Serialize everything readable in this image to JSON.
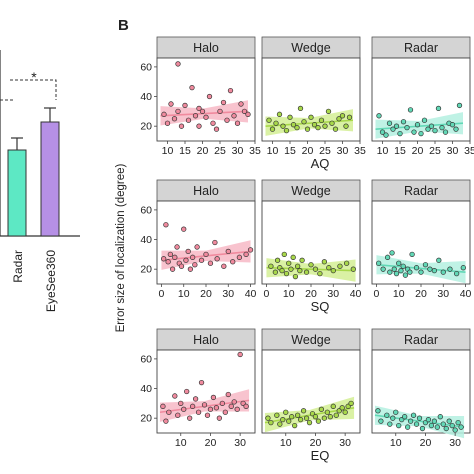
{
  "panel_letter": "B",
  "y_axis_label": "Error size of localization (degree)",
  "panel_a": {
    "bar_labels": [
      "Radar",
      "EyeSee360"
    ],
    "significance": "*",
    "colors": {
      "Radar": "#5de8c4",
      "EyeSee360": "#b690e6"
    }
  },
  "facet_titles": [
    "Halo",
    "Wedge",
    "Radar"
  ],
  "row_x_labels": [
    "AQ",
    "SQ",
    "EQ"
  ],
  "colors": {
    "Halo": "#f08a9e",
    "Wedge": "#a8d84a",
    "Radar": "#62d8b6",
    "Halo_band": "#f7b9c6",
    "Wedge_band": "#d4ef94",
    "Radar_band": "#b4f0e0",
    "strip": "#d4d4d4"
  },
  "chart_data": [
    {
      "type": "bar",
      "categories": [
        "Radar",
        "EyeSee360"
      ],
      "values": [
        28,
        34
      ],
      "errors": [
        3,
        3
      ],
      "annotation": "*"
    },
    {
      "type": "scatter",
      "row_label": "AQ",
      "x_ticks": [
        10,
        15,
        20,
        25,
        30,
        35
      ],
      "y_ticks": [
        20,
        40,
        60
      ],
      "xlim": [
        7,
        35
      ],
      "ylim": [
        10,
        66
      ],
      "facets": [
        {
          "title": "Halo",
          "fit": [
            [
              8,
              27
            ],
            [
              33,
              30
            ]
          ],
          "points": [
            [
              9,
              28
            ],
            [
              10,
              22
            ],
            [
              11,
              35
            ],
            [
              12,
              25
            ],
            [
              13,
              62
            ],
            [
              13,
              30
            ],
            [
              14,
              20
            ],
            [
              15,
              34
            ],
            [
              16,
              24
            ],
            [
              17,
              46
            ],
            [
              18,
              27
            ],
            [
              19,
              32
            ],
            [
              19,
              20
            ],
            [
              20,
              30
            ],
            [
              21,
              26
            ],
            [
              22,
              40
            ],
            [
              23,
              22
            ],
            [
              24,
              18
            ],
            [
              25,
              30
            ],
            [
              26,
              36
            ],
            [
              27,
              24
            ],
            [
              28,
              44
            ],
            [
              29,
              27
            ],
            [
              30,
              22
            ],
            [
              31,
              35
            ],
            [
              32,
              30
            ],
            [
              33,
              28
            ]
          ]
        },
        {
          "title": "Wedge",
          "fit": [
            [
              8,
              20
            ],
            [
              33,
              24
            ]
          ],
          "points": [
            [
              9,
              24
            ],
            [
              10,
              18
            ],
            [
              11,
              22
            ],
            [
              12,
              28
            ],
            [
              13,
              20
            ],
            [
              14,
              17
            ],
            [
              15,
              26
            ],
            [
              16,
              21
            ],
            [
              17,
              19
            ],
            [
              18,
              32
            ],
            [
              19,
              23
            ],
            [
              20,
              18
            ],
            [
              21,
              26
            ],
            [
              22,
              21
            ],
            [
              23,
              19
            ],
            [
              24,
              24
            ],
            [
              25,
              20
            ],
            [
              26,
              30
            ],
            [
              27,
              22
            ],
            [
              28,
              18
            ],
            [
              29,
              25
            ],
            [
              30,
              27
            ],
            [
              31,
              20
            ],
            [
              32,
              26
            ]
          ]
        },
        {
          "title": "Radar",
          "fit": [
            [
              8,
              18
            ],
            [
              33,
              22
            ]
          ],
          "points": [
            [
              9,
              27
            ],
            [
              10,
              16
            ],
            [
              11,
              14
            ],
            [
              12,
              22
            ],
            [
              13,
              18
            ],
            [
              14,
              20
            ],
            [
              15,
              15
            ],
            [
              16,
              23
            ],
            [
              17,
              19
            ],
            [
              18,
              31
            ],
            [
              19,
              16
            ],
            [
              20,
              21
            ],
            [
              21,
              15
            ],
            [
              22,
              24
            ],
            [
              23,
              18
            ],
            [
              24,
              20
            ],
            [
              25,
              17
            ],
            [
              26,
              32
            ],
            [
              27,
              19
            ],
            [
              28,
              16
            ],
            [
              29,
              22
            ],
            [
              30,
              21
            ],
            [
              31,
              18
            ],
            [
              32,
              34
            ]
          ]
        }
      ]
    },
    {
      "type": "scatter",
      "row_label": "SQ",
      "x_ticks": [
        0,
        10,
        20,
        30,
        40
      ],
      "y_ticks": [
        20,
        40,
        60
      ],
      "xlim": [
        -2,
        42
      ],
      "ylim": [
        10,
        66
      ],
      "facets": [
        {
          "title": "Halo",
          "fit": [
            [
              0,
              26
            ],
            [
              40,
              32
            ]
          ],
          "points": [
            [
              1,
              27
            ],
            [
              2,
              50
            ],
            [
              3,
              25
            ],
            [
              4,
              30
            ],
            [
              5,
              20
            ],
            [
              6,
              28
            ],
            [
              7,
              35
            ],
            [
              8,
              24
            ],
            [
              9,
              22
            ],
            [
              10,
              47
            ],
            [
              11,
              26
            ],
            [
              12,
              32
            ],
            [
              13,
              20
            ],
            [
              14,
              28
            ],
            [
              15,
              23
            ],
            [
              16,
              35
            ],
            [
              18,
              26
            ],
            [
              20,
              30
            ],
            [
              22,
              24
            ],
            [
              24,
              38
            ],
            [
              25,
              27
            ],
            [
              28,
              22
            ],
            [
              30,
              32
            ],
            [
              32,
              25
            ],
            [
              35,
              28
            ],
            [
              38,
              30
            ],
            [
              40,
              33
            ]
          ]
        },
        {
          "title": "Wedge",
          "fit": [
            [
              0,
              21
            ],
            [
              40,
              19
            ]
          ],
          "points": [
            [
              2,
              22
            ],
            [
              4,
              18
            ],
            [
              5,
              26
            ],
            [
              6,
              21
            ],
            [
              7,
              19
            ],
            [
              8,
              30
            ],
            [
              9,
              17
            ],
            [
              10,
              24
            ],
            [
              11,
              20
            ],
            [
              12,
              28
            ],
            [
              13,
              15
            ],
            [
              14,
              22
            ],
            [
              15,
              19
            ],
            [
              16,
              26
            ],
            [
              18,
              18
            ],
            [
              20,
              23
            ],
            [
              22,
              20
            ],
            [
              24,
              17
            ],
            [
              26,
              25
            ],
            [
              28,
              21
            ],
            [
              30,
              19
            ],
            [
              33,
              22
            ],
            [
              36,
              24
            ],
            [
              39,
              20
            ]
          ]
        },
        {
          "title": "Radar",
          "fit": [
            [
              0,
              23
            ],
            [
              40,
              18
            ]
          ],
          "points": [
            [
              1,
              24
            ],
            [
              3,
              20
            ],
            [
              5,
              28
            ],
            [
              6,
              18
            ],
            [
              7,
              31
            ],
            [
              8,
              20
            ],
            [
              9,
              17
            ],
            [
              10,
              24
            ],
            [
              11,
              19
            ],
            [
              12,
              22
            ],
            [
              13,
              16
            ],
            [
              14,
              20
            ],
            [
              15,
              18
            ],
            [
              16,
              30
            ],
            [
              18,
              21
            ],
            [
              20,
              18
            ],
            [
              22,
              23
            ],
            [
              24,
              20
            ],
            [
              26,
              19
            ],
            [
              28,
              26
            ],
            [
              30,
              18
            ],
            [
              33,
              20
            ],
            [
              36,
              17
            ],
            [
              39,
              21
            ]
          ]
        }
      ]
    },
    {
      "type": "scatter",
      "row_label": "EQ",
      "x_ticks": [
        10,
        20,
        30
      ],
      "y_ticks": [
        20,
        40,
        60
      ],
      "xlim": [
        2,
        35
      ],
      "ylim": [
        10,
        66
      ],
      "facets": [
        {
          "title": "Halo",
          "fit": [
            [
              3,
              24
            ],
            [
              33,
              32
            ]
          ],
          "points": [
            [
              4,
              28
            ],
            [
              5,
              18
            ],
            [
              6,
              24
            ],
            [
              8,
              35
            ],
            [
              9,
              22
            ],
            [
              10,
              30
            ],
            [
              11,
              26
            ],
            [
              12,
              38
            ],
            [
              13,
              20
            ],
            [
              14,
              28
            ],
            [
              15,
              33
            ],
            [
              16,
              24
            ],
            [
              17,
              44
            ],
            [
              18,
              29
            ],
            [
              19,
              22
            ],
            [
              20,
              26
            ],
            [
              21,
              34
            ],
            [
              22,
              27
            ],
            [
              23,
              20
            ],
            [
              24,
              30
            ],
            [
              25,
              24
            ],
            [
              26,
              36
            ],
            [
              27,
              28
            ],
            [
              28,
              31
            ],
            [
              29,
              26
            ],
            [
              30,
              63
            ],
            [
              31,
              30
            ],
            [
              32,
              28
            ]
          ]
        },
        {
          "title": "Wedge",
          "fit": [
            [
              3,
              17
            ],
            [
              33,
              27
            ]
          ],
          "points": [
            [
              4,
              20
            ],
            [
              5,
              17
            ],
            [
              7,
              22
            ],
            [
              8,
              16
            ],
            [
              9,
              19
            ],
            [
              10,
              24
            ],
            [
              11,
              18
            ],
            [
              12,
              21
            ],
            [
              13,
              15
            ],
            [
              14,
              22
            ],
            [
              15,
              19
            ],
            [
              16,
              25
            ],
            [
              17,
              20
            ],
            [
              18,
              17
            ],
            [
              19,
              23
            ],
            [
              20,
              21
            ],
            [
              21,
              18
            ],
            [
              22,
              26
            ],
            [
              23,
              20
            ],
            [
              24,
              24
            ],
            [
              25,
              21
            ],
            [
              26,
              28
            ],
            [
              27,
              22
            ],
            [
              28,
              25
            ],
            [
              29,
              27
            ],
            [
              30,
              24
            ],
            [
              31,
              28
            ],
            [
              32,
              30
            ]
          ]
        },
        {
          "title": "Radar",
          "fit": [
            [
              3,
              22
            ],
            [
              33,
              14
            ]
          ],
          "points": [
            [
              4,
              25
            ],
            [
              5,
              18
            ],
            [
              7,
              22
            ],
            [
              8,
              16
            ],
            [
              9,
              20
            ],
            [
              10,
              24
            ],
            [
              11,
              15
            ],
            [
              12,
              19
            ],
            [
              13,
              21
            ],
            [
              14,
              14
            ],
            [
              15,
              18
            ],
            [
              16,
              22
            ],
            [
              17,
              16
            ],
            [
              18,
              20
            ],
            [
              19,
              13
            ],
            [
              20,
              17
            ],
            [
              21,
              19
            ],
            [
              22,
              15
            ],
            [
              23,
              18
            ],
            [
              24,
              14
            ],
            [
              25,
              21
            ],
            [
              26,
              16
            ],
            [
              27,
              13
            ],
            [
              28,
              18
            ],
            [
              29,
              15
            ],
            [
              30,
              12
            ],
            [
              31,
              17
            ],
            [
              32,
              14
            ]
          ]
        }
      ]
    }
  ]
}
